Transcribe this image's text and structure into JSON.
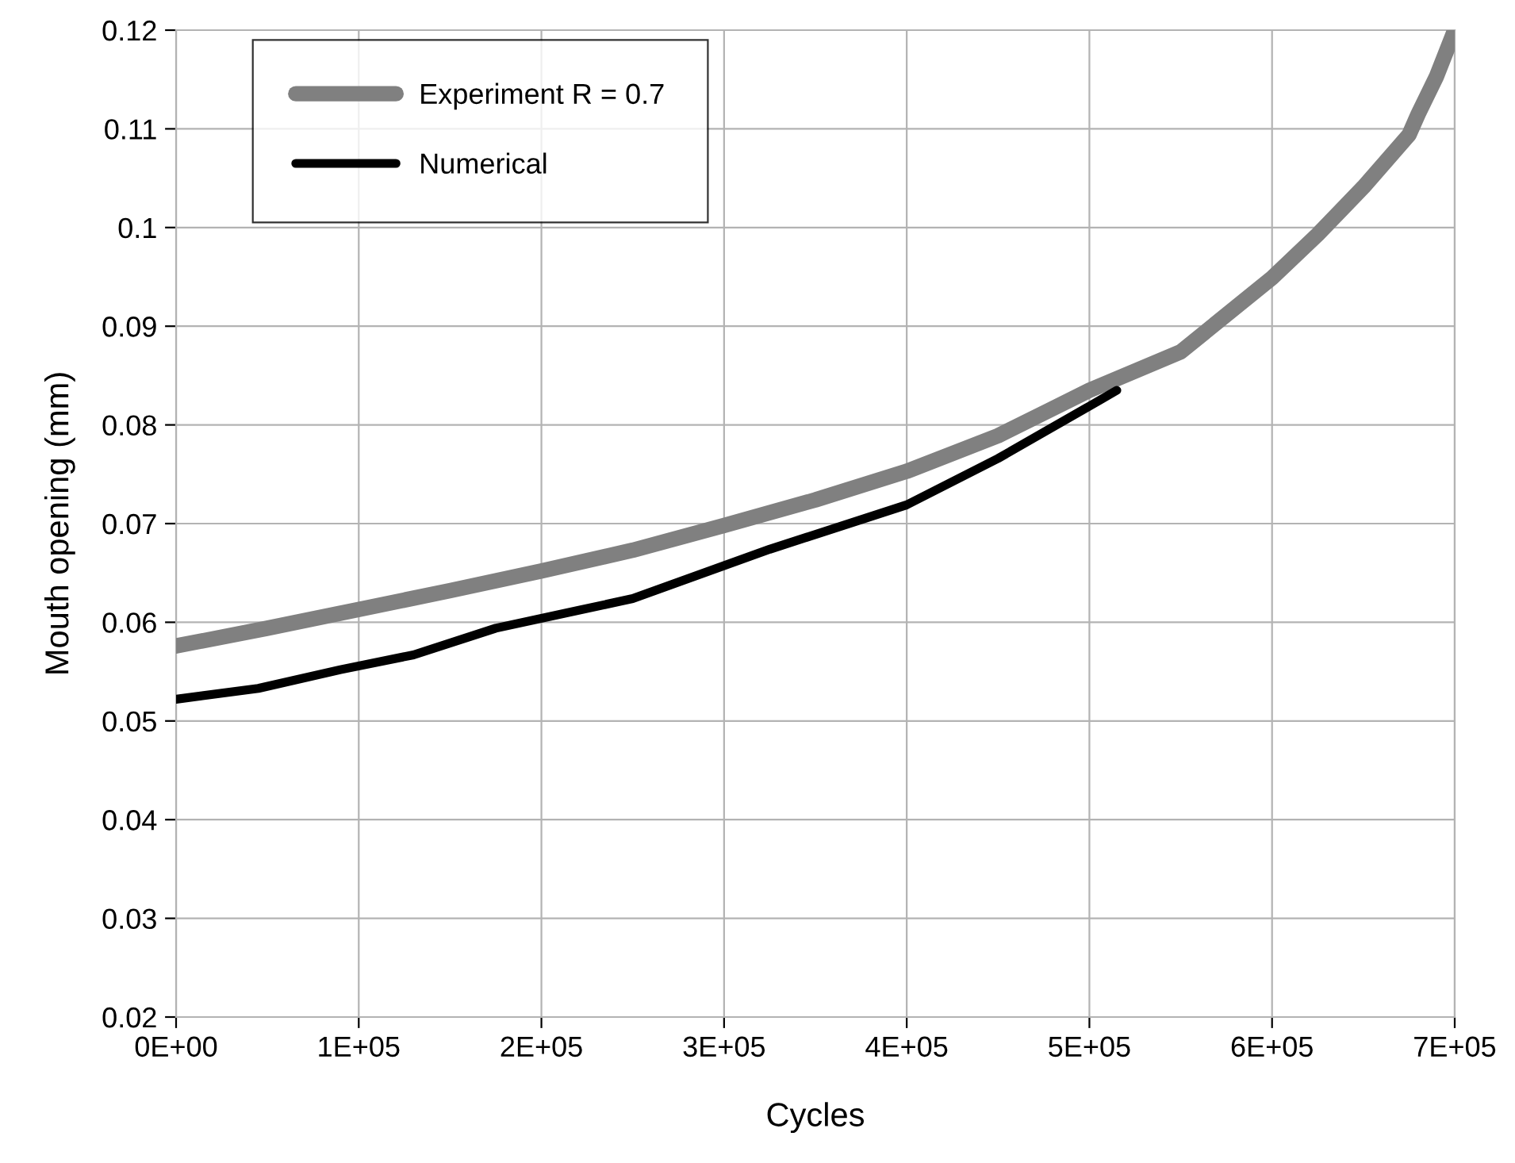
{
  "chart_data": {
    "type": "line",
    "xlabel": "Cycles",
    "ylabel": "Mouth opening (mm)",
    "series": [
      {
        "name": "Experiment R = 0.7",
        "color": "#808080",
        "x": [
          0,
          50000,
          100000,
          150000,
          200000,
          250000,
          300000,
          350000,
          400000,
          450000,
          500000,
          550000,
          600000,
          625000,
          650000,
          675000,
          680000,
          690000,
          700000
        ],
        "values": [
          0.0576,
          0.0594,
          0.0613,
          0.0632,
          0.0652,
          0.0673,
          0.0698,
          0.0724,
          0.0753,
          0.0789,
          0.0835,
          0.0874,
          0.0949,
          0.0993,
          0.1041,
          0.1094,
          0.1115,
          0.1153,
          0.12
        ]
      },
      {
        "name": "Numerical",
        "color": "#000000",
        "x": [
          0,
          45000,
          90000,
          130000,
          175000,
          250000,
          325000,
          400000,
          450000,
          500000,
          515000
        ],
        "values": [
          0.0522,
          0.0533,
          0.0552,
          0.0567,
          0.0594,
          0.0624,
          0.0674,
          0.0719,
          0.0766,
          0.0819,
          0.0835
        ]
      }
    ],
    "xlim": [
      0,
      700000
    ],
    "ylim": [
      0.02,
      0.12
    ],
    "xticks": [
      {
        "value": 0,
        "label": "0E+00"
      },
      {
        "value": 100000,
        "label": "1E+05"
      },
      {
        "value": 200000,
        "label": "2E+05"
      },
      {
        "value": 300000,
        "label": "3E+05"
      },
      {
        "value": 400000,
        "label": "4E+05"
      },
      {
        "value": 500000,
        "label": "5E+05"
      },
      {
        "value": 600000,
        "label": "6E+05"
      },
      {
        "value": 700000,
        "label": "7E+05"
      }
    ],
    "yticks": [
      0.02,
      0.03,
      0.04,
      0.05,
      0.06,
      0.07,
      0.08,
      0.09,
      0.1,
      0.11,
      0.12
    ],
    "grid": true,
    "legend": "top left",
    "marker": "none",
    "line_style": "solid"
  }
}
